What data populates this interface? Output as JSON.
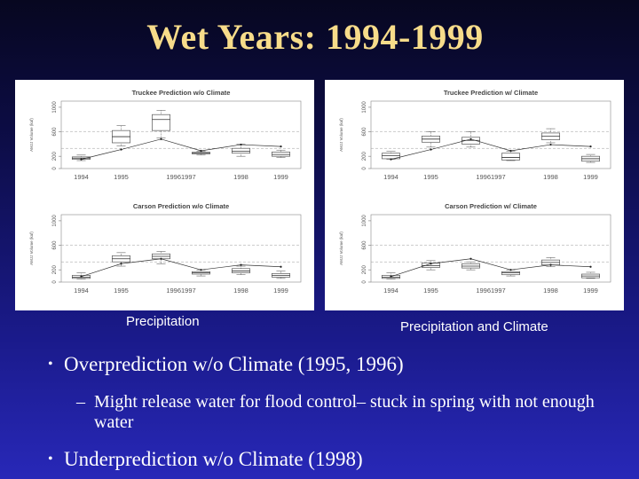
{
  "slide": {
    "title": "Wet Years:  1994-1999",
    "caption_left": "Precipitation",
    "caption_right": "Precipitation and Climate",
    "bullets": [
      {
        "text": "Overprediction w/o Climate (1995, 1996)",
        "sub": [
          "Might release water for flood control– stuck in spring with not enough water"
        ]
      },
      {
        "text": "Underprediction w/o Climate (1998)",
        "sub": []
      }
    ],
    "bullet_glyph": "•",
    "sub_glyph": "–"
  },
  "chart_data": [
    {
      "type": "boxplot",
      "title": "Truckee Prediction w/o Climate",
      "ylabel": "AMJJ Volume (kaf)",
      "yticks": [
        "0",
        "200",
        "600",
        "1000"
      ],
      "ylim": [
        0,
        1100
      ],
      "categories": [
        "1994",
        "1995",
        "1996",
        "1997",
        "1998",
        "1999"
      ],
      "tick_labels": [
        "1994",
        "1995",
        "19961997",
        "1998",
        "1999"
      ],
      "boxes": [
        [
          130,
          150,
          170,
          190,
          220
        ],
        [
          370,
          420,
          520,
          620,
          700
        ],
        [
          500,
          620,
          800,
          880,
          950
        ],
        [
          220,
          240,
          250,
          265,
          280
        ],
        [
          200,
          250,
          280,
          330,
          400
        ],
        [
          180,
          200,
          230,
          270,
          300
        ]
      ],
      "observed": [
        150,
        310,
        480,
        290,
        390,
        360
      ]
    },
    {
      "type": "boxplot",
      "title": "Truckee Prediction w/ Climate",
      "ylabel": "AMJJ Volume (kaf)",
      "yticks": [
        "0",
        "200",
        "600",
        "1000"
      ],
      "ylim": [
        0,
        1100
      ],
      "categories": [
        "1994",
        "1995",
        "1996",
        "1997",
        "1998",
        "1999"
      ],
      "tick_labels": [
        "1994",
        "1995",
        "19961997",
        "1998",
        "1999"
      ],
      "boxes": [
        [
          150,
          160,
          210,
          250,
          280
        ],
        [
          350,
          430,
          480,
          530,
          600
        ],
        [
          350,
          400,
          460,
          510,
          600
        ],
        [
          130,
          140,
          180,
          250,
          280
        ],
        [
          420,
          470,
          530,
          580,
          650
        ],
        [
          100,
          120,
          160,
          200,
          230
        ]
      ],
      "observed": [
        150,
        310,
        480,
        290,
        390,
        360
      ]
    },
    {
      "type": "boxplot",
      "title": "Carson Prediction w/o Climate",
      "ylabel": "AMJJ Volume (kaf)",
      "yticks": [
        "0",
        "200",
        "600",
        "1000"
      ],
      "ylim": [
        0,
        1100
      ],
      "categories": [
        "1994",
        "1995",
        "1996",
        "1997",
        "1998",
        "1999"
      ],
      "tick_labels": [
        "1994",
        "1995",
        "19961997",
        "1998",
        "1999"
      ],
      "boxes": [
        [
          50,
          60,
          80,
          110,
          150
        ],
        [
          260,
          330,
          380,
          430,
          480
        ],
        [
          300,
          380,
          420,
          460,
          500
        ],
        [
          100,
          130,
          150,
          170,
          200
        ],
        [
          120,
          150,
          180,
          220,
          260
        ],
        [
          60,
          80,
          110,
          140,
          180
        ]
      ],
      "observed": [
        90,
        300,
        380,
        200,
        280,
        250
      ]
    },
    {
      "type": "boxplot",
      "title": "Carson Prediction w/  Climate",
      "ylabel": "AMJJ Volume (kaf)",
      "yticks": [
        "0",
        "200",
        "600",
        "1000"
      ],
      "ylim": [
        0,
        1100
      ],
      "categories": [
        "1994",
        "1995",
        "1996",
        "1997",
        "1998",
        "1999"
      ],
      "tick_labels": [
        "1994",
        "1995",
        "19961997",
        "1998",
        "1999"
      ],
      "boxes": [
        [
          50,
          60,
          80,
          110,
          150
        ],
        [
          200,
          240,
          270,
          310,
          350
        ],
        [
          200,
          230,
          260,
          300,
          330
        ],
        [
          100,
          120,
          150,
          170,
          200
        ],
        [
          250,
          280,
          320,
          360,
          400
        ],
        [
          60,
          70,
          100,
          130,
          160
        ]
      ],
      "observed": [
        90,
        300,
        380,
        200,
        280,
        250
      ]
    }
  ]
}
